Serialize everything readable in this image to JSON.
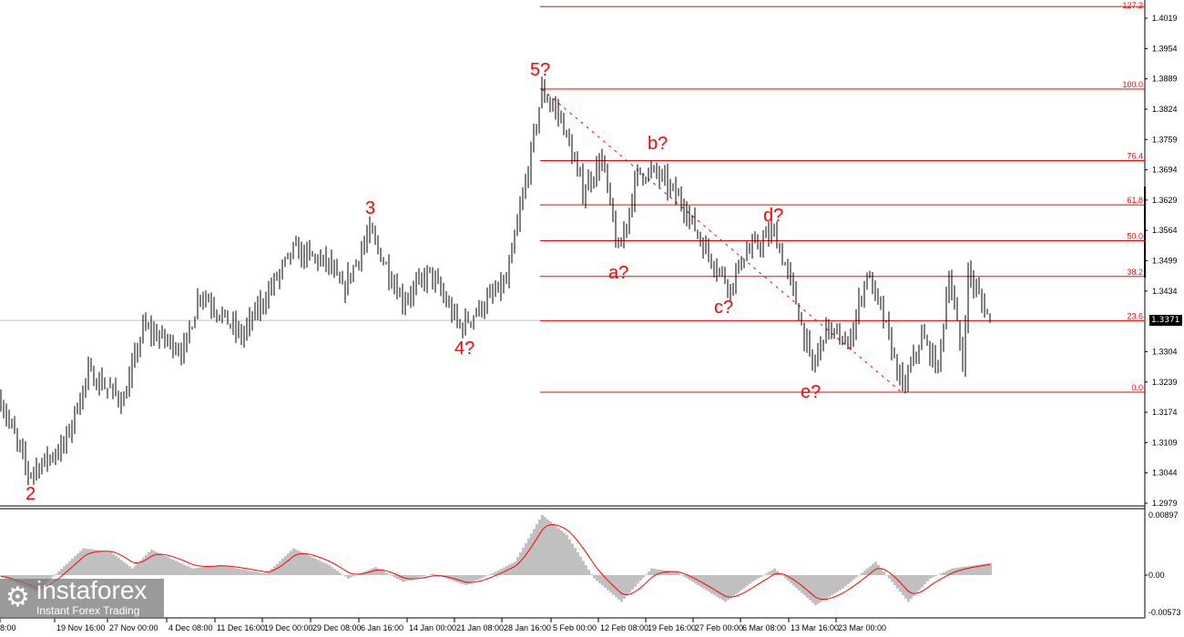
{
  "chart_data": [
    {
      "type": "ohlc",
      "price_axis": {
        "ticks": [
          "1.4019",
          "1.3954",
          "1.3889",
          "1.3824",
          "1.3759",
          "1.3694",
          "1.3629",
          "1.3564",
          "1.3499",
          "1.3434",
          "1.3371",
          "1.3304",
          "1.3239",
          "1.3174",
          "1.3109",
          "1.3044",
          "1.2979"
        ],
        "range": [
          1.2979,
          1.4019
        ]
      },
      "current_price": "1.3371",
      "time_axis": {
        "ticks": [
          "8:00",
          "19 Nov 16:00",
          "27 Nov 00:00",
          "4 Dec 08:00",
          "11 Dec 16:00",
          "19 Dec 00:00",
          "29 Dec 08:00",
          "6 Jan 16:00",
          "14 Jan 00:00",
          "21 Jan 08:00",
          "28 Jan 16:00",
          "5 Feb 00:00",
          "12 Feb 08:00",
          "19 Feb 16:00",
          "27 Feb 00:00",
          "6 Mar 08:00",
          "13 Mar 16:00",
          "23 Mar 00:00"
        ]
      },
      "price_path": [
        {
          "bar": 0,
          "price": 1.32
        },
        {
          "bar": 10,
          "price": 1.3043
        },
        {
          "bar": 23,
          "price": 1.3102
        },
        {
          "bar": 32,
          "price": 1.3258
        },
        {
          "bar": 45,
          "price": 1.3199
        },
        {
          "bar": 52,
          "price": 1.3356
        },
        {
          "bar": 67,
          "price": 1.3307
        },
        {
          "bar": 73,
          "price": 1.3434
        },
        {
          "bar": 88,
          "price": 1.3336
        },
        {
          "bar": 107,
          "price": 1.3521
        },
        {
          "bar": 120,
          "price": 1.3492
        },
        {
          "bar": 125,
          "price": 1.3434
        },
        {
          "bar": 135,
          "price": 1.356
        },
        {
          "bar": 147,
          "price": 1.3414
        },
        {
          "bar": 157,
          "price": 1.3473
        },
        {
          "bar": 168,
          "price": 1.3356
        },
        {
          "bar": 185,
          "price": 1.3453
        },
        {
          "bar": 193,
          "price": 1.3697
        },
        {
          "bar": 198,
          "price": 1.3863
        },
        {
          "bar": 205,
          "price": 1.3804
        },
        {
          "bar": 213,
          "price": 1.3648
        },
        {
          "bar": 220,
          "price": 1.3717
        },
        {
          "bar": 226,
          "price": 1.3512
        },
        {
          "bar": 233,
          "price": 1.3687
        },
        {
          "bar": 240,
          "price": 1.3687
        },
        {
          "bar": 250,
          "price": 1.3619
        },
        {
          "bar": 257,
          "price": 1.3531
        },
        {
          "bar": 267,
          "price": 1.3443
        },
        {
          "bar": 272,
          "price": 1.3512
        },
        {
          "bar": 283,
          "price": 1.356
        },
        {
          "bar": 290,
          "price": 1.3434
        },
        {
          "bar": 297,
          "price": 1.3268
        },
        {
          "bar": 302,
          "price": 1.3356
        },
        {
          "bar": 310,
          "price": 1.3317
        },
        {
          "bar": 317,
          "price": 1.3473
        },
        {
          "bar": 323,
          "price": 1.3375
        },
        {
          "bar": 330,
          "price": 1.3223
        },
        {
          "bar": 337,
          "price": 1.3336
        },
        {
          "bar": 343,
          "price": 1.3268
        },
        {
          "bar": 347,
          "price": 1.3473
        },
        {
          "bar": 352,
          "price": 1.3278
        },
        {
          "bar": 354,
          "price": 1.3473
        },
        {
          "bar": 362,
          "price": 1.3371
        }
      ],
      "fibonacci": {
        "high": 1.3867,
        "low": 1.3217,
        "levels": [
          {
            "label": "127.2",
            "ratio": 1.272
          },
          {
            "label": "100.0",
            "ratio": 1.0
          },
          {
            "label": "76.4",
            "ratio": 0.764
          },
          {
            "label": "61.8",
            "ratio": 0.618
          },
          {
            "label": "50.0",
            "ratio": 0.5
          },
          {
            "label": "38.2",
            "ratio": 0.382
          },
          {
            "label": "23.6",
            "ratio": 0.236
          },
          {
            "label": "0.0",
            "ratio": 0.0
          }
        ]
      },
      "wave_labels": [
        "2",
        "3",
        "4?",
        "5?",
        "a?",
        "b?",
        "c?",
        "d?",
        "e?"
      ],
      "colors": {
        "bars": "#000000",
        "annotations": "#ff0000",
        "current_line": "#c0c0c0"
      }
    },
    {
      "type": "histogram+line",
      "axis": {
        "ticks": [
          "0.00897",
          "0.00",
          "-0.00573"
        ],
        "range": [
          -0.00573,
          0.00897
        ]
      },
      "histogram_path": [
        {
          "bar": 0,
          "value": -0.0002
        },
        {
          "bar": 13,
          "value": -0.0025
        },
        {
          "bar": 30,
          "value": 0.004
        },
        {
          "bar": 40,
          "value": 0.0035
        },
        {
          "bar": 48,
          "value": 0.001
        },
        {
          "bar": 55,
          "value": 0.0038
        },
        {
          "bar": 70,
          "value": 0.001
        },
        {
          "bar": 80,
          "value": 0.0015
        },
        {
          "bar": 97,
          "value": 0.0002
        },
        {
          "bar": 107,
          "value": 0.004
        },
        {
          "bar": 120,
          "value": 0.0015
        },
        {
          "bar": 127,
          "value": -0.0005
        },
        {
          "bar": 137,
          "value": 0.0012
        },
        {
          "bar": 147,
          "value": -0.001
        },
        {
          "bar": 158,
          "value": 0.0002
        },
        {
          "bar": 170,
          "value": -0.0015
        },
        {
          "bar": 180,
          "value": 0.0003
        },
        {
          "bar": 188,
          "value": 0.002
        },
        {
          "bar": 198,
          "value": 0.009
        },
        {
          "bar": 207,
          "value": 0.006
        },
        {
          "bar": 217,
          "value": -0.0005
        },
        {
          "bar": 227,
          "value": -0.004
        },
        {
          "bar": 238,
          "value": 0.001
        },
        {
          "bar": 247,
          "value": 0.0005
        },
        {
          "bar": 265,
          "value": -0.004
        },
        {
          "bar": 275,
          "value": -0.001
        },
        {
          "bar": 283,
          "value": 0.001
        },
        {
          "bar": 298,
          "value": -0.0045
        },
        {
          "bar": 308,
          "value": -0.002
        },
        {
          "bar": 320,
          "value": 0.002
        },
        {
          "bar": 332,
          "value": -0.004
        },
        {
          "bar": 340,
          "value": -0.0005
        },
        {
          "bar": 348,
          "value": 0.001
        },
        {
          "bar": 362,
          "value": 0.0018
        }
      ],
      "colors": {
        "histogram": "#c0c0c0",
        "signal": "#ff0000"
      }
    }
  ],
  "watermark": {
    "name": "instaforex",
    "tagline": "Instant Forex Trading"
  }
}
